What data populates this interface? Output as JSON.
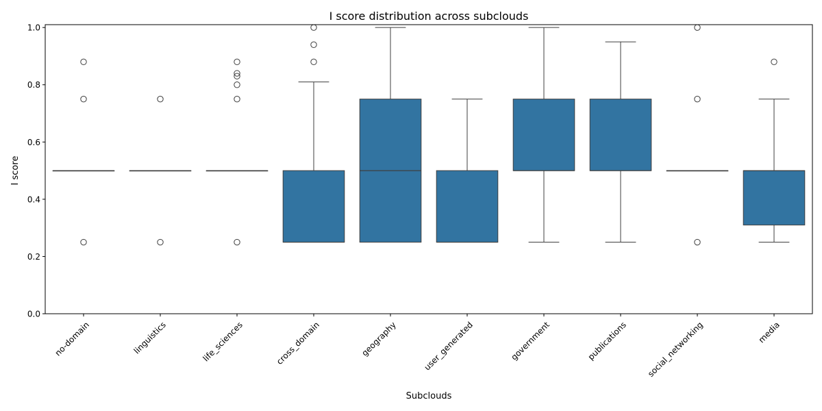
{
  "chart_data": {
    "type": "box",
    "title": "I score distribution across subclouds",
    "xlabel": "Subclouds",
    "ylabel": "I score",
    "ylim": [
      0.0,
      1.01
    ],
    "yticks": [
      0.0,
      0.2,
      0.4,
      0.6,
      0.8,
      1.0
    ],
    "ytick_labels": [
      "0.0",
      "0.2",
      "0.4",
      "0.6",
      "0.8",
      "1.0"
    ],
    "box_color": "#3274a1",
    "line_color": "#3f3f3f",
    "categories": [
      "no-domain",
      "linguistics",
      "life_sciences",
      "cross_domain",
      "geography",
      "user_generated",
      "government",
      "publications",
      "social_networking",
      "media"
    ],
    "boxes": [
      {
        "q1": 0.5,
        "median": 0.5,
        "q3": 0.5,
        "whisker_low": 0.5,
        "whisker_high": 0.5,
        "outliers": [
          0.25,
          0.75,
          0.88
        ]
      },
      {
        "q1": 0.5,
        "median": 0.5,
        "q3": 0.5,
        "whisker_low": 0.5,
        "whisker_high": 0.5,
        "outliers": [
          0.25,
          0.75
        ]
      },
      {
        "q1": 0.5,
        "median": 0.5,
        "q3": 0.5,
        "whisker_low": 0.5,
        "whisker_high": 0.5,
        "outliers": [
          0.25,
          0.75,
          0.8,
          0.83,
          0.84,
          0.88
        ]
      },
      {
        "q1": 0.25,
        "median": 0.25,
        "q3": 0.5,
        "whisker_low": 0.25,
        "whisker_high": 0.81,
        "outliers": [
          0.88,
          0.94,
          1.0
        ]
      },
      {
        "q1": 0.25,
        "median": 0.5,
        "q3": 0.75,
        "whisker_low": 0.25,
        "whisker_high": 1.0,
        "outliers": []
      },
      {
        "q1": 0.25,
        "median": 0.25,
        "q3": 0.5,
        "whisker_low": 0.25,
        "whisker_high": 0.75,
        "outliers": []
      },
      {
        "q1": 0.5,
        "median": 0.5,
        "q3": 0.75,
        "whisker_low": 0.25,
        "whisker_high": 1.0,
        "outliers": []
      },
      {
        "q1": 0.5,
        "median": 0.5,
        "q3": 0.75,
        "whisker_low": 0.25,
        "whisker_high": 0.95,
        "outliers": []
      },
      {
        "q1": 0.5,
        "median": 0.5,
        "q3": 0.5,
        "whisker_low": 0.5,
        "whisker_high": 0.5,
        "outliers": [
          0.25,
          0.75,
          1.0
        ]
      },
      {
        "q1": 0.31,
        "median": 0.5,
        "q3": 0.5,
        "whisker_low": 0.25,
        "whisker_high": 0.75,
        "outliers": [
          0.88
        ]
      }
    ]
  }
}
